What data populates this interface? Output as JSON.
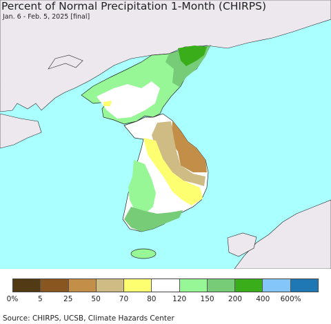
{
  "title": "Percent of Normal Precipitation 1-Month (CHIRPS)",
  "subtitle": "Jan. 6 - Feb. 5, 2025 [final]",
  "source": "Source: CHIRPS, UCSB, Climate Hazards Center",
  "colors": {
    "ocean": "#aaffff",
    "land_outside": "#ece8ee",
    "border": "#222222"
  },
  "legend": {
    "colors": [
      "#523a14",
      "#8a561f",
      "#c38e48",
      "#cfbb84",
      "#fefe71",
      "#ffffff",
      "#97f797",
      "#77cc77",
      "#3aae1a",
      "#84c6fa",
      "#1f77b4"
    ],
    "labels": [
      "0%",
      "5",
      "25",
      "50",
      "70",
      "80",
      "120",
      "150",
      "200",
      "400",
      "600%"
    ]
  }
}
